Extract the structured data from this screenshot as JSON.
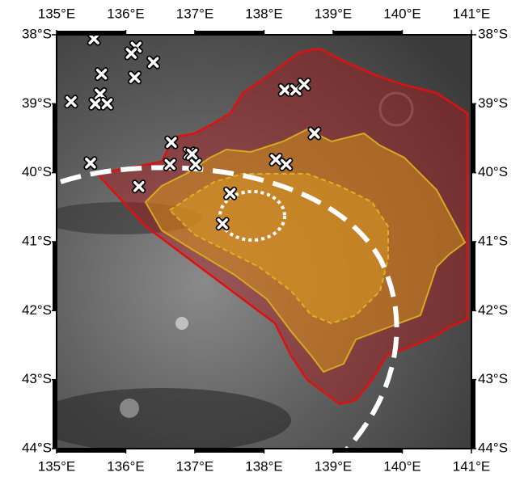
{
  "map": {
    "lonlim": [
      135,
      141
    ],
    "latlim": [
      38,
      44
    ],
    "lon_ticks": [
      {
        "value": 135,
        "label": "135°E"
      },
      {
        "value": 136,
        "label": "136°E"
      },
      {
        "value": 137,
        "label": "137°E"
      },
      {
        "value": 138,
        "label": "138°E"
      },
      {
        "value": 139,
        "label": "139°E"
      },
      {
        "value": 140,
        "label": "140°E"
      },
      {
        "value": 141,
        "label": "141°E"
      }
    ],
    "lat_ticks": [
      {
        "value": 38,
        "label": "38°S"
      },
      {
        "value": 39,
        "label": "39°S"
      },
      {
        "value": 40,
        "label": "40°S"
      },
      {
        "value": 41,
        "label": "41°S"
      },
      {
        "value": 42,
        "label": "42°S"
      },
      {
        "value": 43,
        "label": "43°S"
      },
      {
        "value": 44,
        "label": "44°S"
      }
    ],
    "markers": [
      {
        "lon": 135.54,
        "lat": 38.06
      },
      {
        "lon": 136.15,
        "lat": 38.18
      },
      {
        "lon": 136.08,
        "lat": 38.27
      },
      {
        "lon": 136.4,
        "lat": 38.4
      },
      {
        "lon": 135.65,
        "lat": 38.57
      },
      {
        "lon": 136.13,
        "lat": 38.62
      },
      {
        "lon": 135.21,
        "lat": 38.97
      },
      {
        "lon": 135.63,
        "lat": 38.86
      },
      {
        "lon": 135.56,
        "lat": 39.0
      },
      {
        "lon": 135.73,
        "lat": 39.0
      },
      {
        "lon": 138.3,
        "lat": 38.8
      },
      {
        "lon": 138.46,
        "lat": 38.8
      },
      {
        "lon": 138.58,
        "lat": 38.72
      },
      {
        "lon": 138.73,
        "lat": 39.43
      },
      {
        "lon": 136.66,
        "lat": 39.56
      },
      {
        "lon": 136.64,
        "lat": 39.88
      },
      {
        "lon": 136.92,
        "lat": 39.72
      },
      {
        "lon": 136.96,
        "lat": 39.73
      },
      {
        "lon": 137.01,
        "lat": 39.88
      },
      {
        "lon": 135.49,
        "lat": 39.86
      },
      {
        "lon": 136.19,
        "lat": 40.2
      },
      {
        "lon": 138.17,
        "lat": 39.81
      },
      {
        "lon": 138.32,
        "lat": 39.88
      },
      {
        "lon": 137.51,
        "lat": 40.3
      },
      {
        "lon": 137.4,
        "lat": 40.74
      }
    ]
  }
}
